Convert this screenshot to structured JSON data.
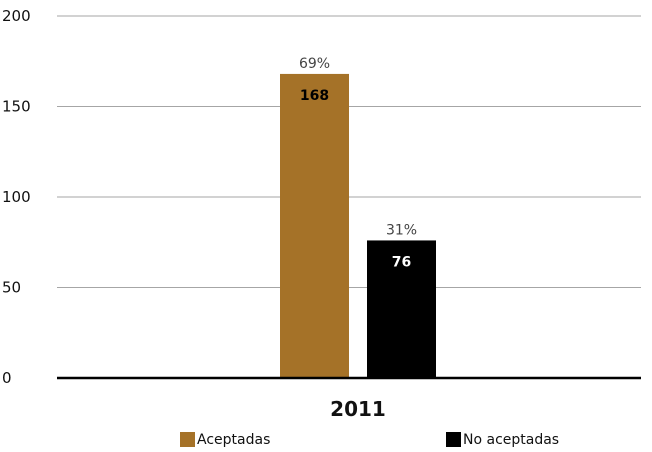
{
  "chart_data": {
    "type": "bar",
    "categories": [
      "2011"
    ],
    "series": [
      {
        "name": "Aceptadas",
        "values": [
          168
        ],
        "percent_label": "69%",
        "value_label": "168",
        "color": "#A57228",
        "label_color": "#000000"
      },
      {
        "name": "No aceptadas",
        "values": [
          76
        ],
        "percent_label": "31%",
        "value_label": "76",
        "color": "#000000",
        "label_color": "#ffffff"
      }
    ],
    "yticks": [
      "0",
      "50",
      "100",
      "150",
      "200"
    ],
    "ylim": [
      0,
      200
    ],
    "grid": true,
    "legend": "bottom",
    "title": "",
    "xlabel": "",
    "ylabel": ""
  }
}
